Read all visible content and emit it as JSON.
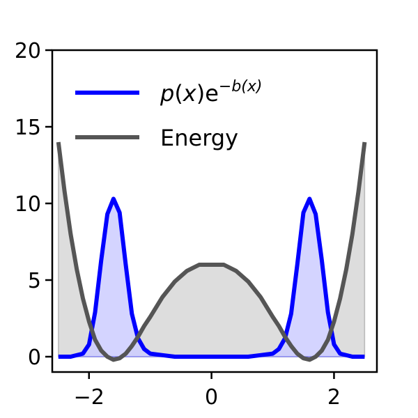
{
  "chart_data": {
    "type": "line",
    "title": "",
    "xlabel": "",
    "ylabel": "",
    "xlim": [
      -2.6,
      2.7
    ],
    "ylim": [
      -1.0,
      20.0
    ],
    "grid": false,
    "legend_placement": "top-left",
    "x_ticks": [
      -2,
      0,
      2
    ],
    "x_tick_labels": [
      "−2",
      "0",
      "2"
    ],
    "y_ticks": [
      0,
      5,
      10,
      15,
      20
    ],
    "y_tick_labels": [
      "0",
      "5",
      "10",
      "15",
      "20"
    ],
    "series": [
      {
        "name": "p(x)e^{-b(x)}",
        "legend_label": {
          "p": "p",
          "open": "(",
          "x": "x",
          "close": ")",
          "e": "e",
          "sup": "−b(x)"
        },
        "color": "#0000ff",
        "fill_color": "#ccccff",
        "filled": true,
        "x": [
          -2.5,
          -2.3,
          -2.1,
          -2.0,
          -1.9,
          -1.8,
          -1.7,
          -1.6,
          -1.5,
          -1.4,
          -1.3,
          -1.2,
          -1.1,
          -1.0,
          -0.8,
          -0.6,
          -0.4,
          -0.2,
          0.0,
          0.2,
          0.4,
          0.6,
          0.8,
          1.0,
          1.1,
          1.2,
          1.3,
          1.4,
          1.5,
          1.6,
          1.7,
          1.8,
          1.9,
          2.0,
          2.1,
          2.3,
          2.5
        ],
        "y": [
          0.0,
          0.0,
          0.2,
          0.8,
          2.9,
          6.3,
          9.3,
          10.3,
          9.4,
          6.0,
          2.8,
          1.2,
          0.5,
          0.2,
          0.1,
          0.0,
          0.0,
          0.0,
          0.0,
          0.0,
          0.0,
          0.0,
          0.1,
          0.2,
          0.5,
          1.2,
          2.8,
          6.0,
          9.4,
          10.3,
          9.3,
          6.3,
          2.9,
          0.8,
          0.2,
          0.0,
          0.0
        ]
      },
      {
        "name": "Energy",
        "color": "#555555",
        "fill_color": "#dddddd",
        "filled": true,
        "x": [
          -2.5,
          -2.4,
          -2.3,
          -2.2,
          -2.1,
          -2.0,
          -1.9,
          -1.8,
          -1.7,
          -1.6,
          -1.5,
          -1.4,
          -1.3,
          -1.2,
          -1.1,
          -1.0,
          -0.8,
          -0.6,
          -0.4,
          -0.2,
          0.0,
          0.2,
          0.4,
          0.6,
          0.8,
          1.0,
          1.1,
          1.2,
          1.3,
          1.4,
          1.5,
          1.6,
          1.7,
          1.8,
          1.9,
          2.0,
          2.1,
          2.2,
          2.3,
          2.4,
          2.5
        ],
        "y": [
          14.0,
          10.8,
          8.0,
          5.7,
          3.8,
          2.3,
          1.1,
          0.4,
          0.0,
          -0.2,
          -0.1,
          0.2,
          0.7,
          1.3,
          2.0,
          2.6,
          3.9,
          4.9,
          5.6,
          6.0,
          6.0,
          6.0,
          5.6,
          4.9,
          3.9,
          2.6,
          2.0,
          1.3,
          0.7,
          0.2,
          -0.1,
          -0.2,
          0.0,
          0.4,
          1.1,
          2.3,
          3.8,
          5.7,
          8.0,
          10.8,
          14.0
        ]
      }
    ]
  }
}
